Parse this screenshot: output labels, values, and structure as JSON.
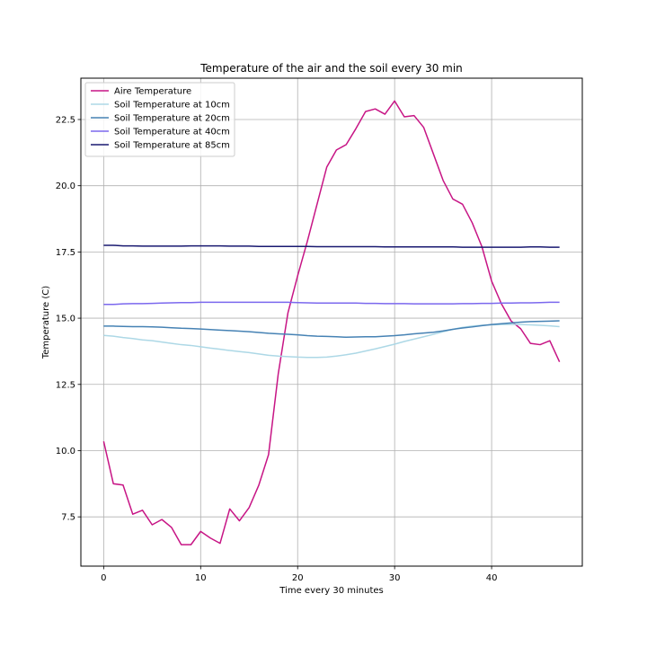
{
  "chart_data": {
    "type": "line",
    "title": "Temperature of the air and the soil every 30 min",
    "xlabel": "Time every 30 minutes",
    "ylabel": "Temperature (C)",
    "xlim": [
      -2.35,
      49.35
    ],
    "ylim": [
      5.64,
      24.06
    ],
    "xticks": [
      0,
      10,
      20,
      30,
      40
    ],
    "yticks": [
      7.5,
      10.0,
      12.5,
      15.0,
      17.5,
      20.0,
      22.5
    ],
    "xtick_labels": [
      "0",
      "10",
      "20",
      "30",
      "40"
    ],
    "ytick_labels": [
      "7.5",
      "10.0",
      "12.5",
      "15.0",
      "17.5",
      "20.0",
      "22.5"
    ],
    "grid": true,
    "legend_position": "top-left",
    "x": [
      0,
      1,
      2,
      3,
      4,
      5,
      6,
      7,
      8,
      9,
      10,
      11,
      12,
      13,
      14,
      15,
      16,
      17,
      18,
      19,
      20,
      21,
      22,
      23,
      24,
      25,
      26,
      27,
      28,
      29,
      30,
      31,
      32,
      33,
      34,
      35,
      36,
      37,
      38,
      39,
      40,
      41,
      42,
      43,
      44,
      45,
      46,
      47
    ],
    "series": [
      {
        "name": "Aire Temperature",
        "color": "#c71585",
        "values": [
          10.35,
          8.75,
          8.7,
          7.6,
          7.75,
          7.2,
          7.4,
          7.1,
          6.45,
          6.45,
          6.95,
          6.7,
          6.5,
          7.8,
          7.35,
          7.85,
          8.7,
          9.85,
          12.9,
          15.2,
          16.6,
          17.9,
          19.3,
          20.7,
          21.35,
          21.55,
          22.15,
          22.8,
          22.9,
          22.7,
          23.2,
          22.6,
          22.65,
          22.2,
          21.2,
          20.2,
          19.5,
          19.3,
          18.6,
          17.7,
          16.4,
          15.55,
          14.9,
          14.6,
          14.05,
          14.0,
          14.15,
          13.35
        ]
      },
      {
        "name": "Soil Temperature at 10cm",
        "color": "#add8e6",
        "values": [
          14.35,
          14.32,
          14.27,
          14.23,
          14.18,
          14.15,
          14.1,
          14.05,
          14.0,
          13.97,
          13.92,
          13.87,
          13.83,
          13.78,
          13.74,
          13.7,
          13.65,
          13.6,
          13.57,
          13.55,
          13.53,
          13.52,
          13.52,
          13.53,
          13.57,
          13.62,
          13.68,
          13.76,
          13.84,
          13.93,
          14.02,
          14.12,
          14.21,
          14.3,
          14.39,
          14.49,
          14.58,
          14.65,
          14.7,
          14.73,
          14.75,
          14.76,
          14.77,
          14.76,
          14.75,
          14.73,
          14.71,
          14.68
        ]
      },
      {
        "name": "Soil Temperature at 20cm",
        "color": "#4682b4",
        "values": [
          14.7,
          14.7,
          14.69,
          14.68,
          14.68,
          14.67,
          14.66,
          14.64,
          14.62,
          14.61,
          14.59,
          14.57,
          14.55,
          14.53,
          14.51,
          14.49,
          14.46,
          14.43,
          14.41,
          14.39,
          14.37,
          14.34,
          14.32,
          14.31,
          14.3,
          14.28,
          14.29,
          14.3,
          14.3,
          14.32,
          14.34,
          14.37,
          14.41,
          14.44,
          14.47,
          14.52,
          14.58,
          14.63,
          14.67,
          14.72,
          14.76,
          14.79,
          14.82,
          14.85,
          14.87,
          14.88,
          14.89,
          14.9
        ]
      },
      {
        "name": "Soil Temperature at 40cm",
        "color": "#7b68ee",
        "values": [
          15.52,
          15.52,
          15.54,
          15.55,
          15.55,
          15.56,
          15.57,
          15.58,
          15.59,
          15.59,
          15.6,
          15.6,
          15.6,
          15.6,
          15.6,
          15.6,
          15.6,
          15.6,
          15.6,
          15.6,
          15.59,
          15.58,
          15.57,
          15.57,
          15.57,
          15.57,
          15.57,
          15.56,
          15.56,
          15.55,
          15.55,
          15.55,
          15.54,
          15.54,
          15.54,
          15.54,
          15.54,
          15.55,
          15.55,
          15.56,
          15.56,
          15.57,
          15.57,
          15.58,
          15.58,
          15.59,
          15.6,
          15.6
        ]
      },
      {
        "name": "Soil Temperature at 85cm",
        "color": "#191970",
        "values": [
          17.75,
          17.75,
          17.73,
          17.73,
          17.72,
          17.72,
          17.72,
          17.72,
          17.72,
          17.73,
          17.73,
          17.73,
          17.73,
          17.72,
          17.72,
          17.72,
          17.71,
          17.71,
          17.71,
          17.71,
          17.71,
          17.71,
          17.7,
          17.7,
          17.7,
          17.7,
          17.7,
          17.7,
          17.7,
          17.69,
          17.69,
          17.69,
          17.69,
          17.69,
          17.69,
          17.69,
          17.69,
          17.68,
          17.68,
          17.68,
          17.68,
          17.68,
          17.68,
          17.68,
          17.69,
          17.69,
          17.68,
          17.68
        ]
      }
    ]
  }
}
